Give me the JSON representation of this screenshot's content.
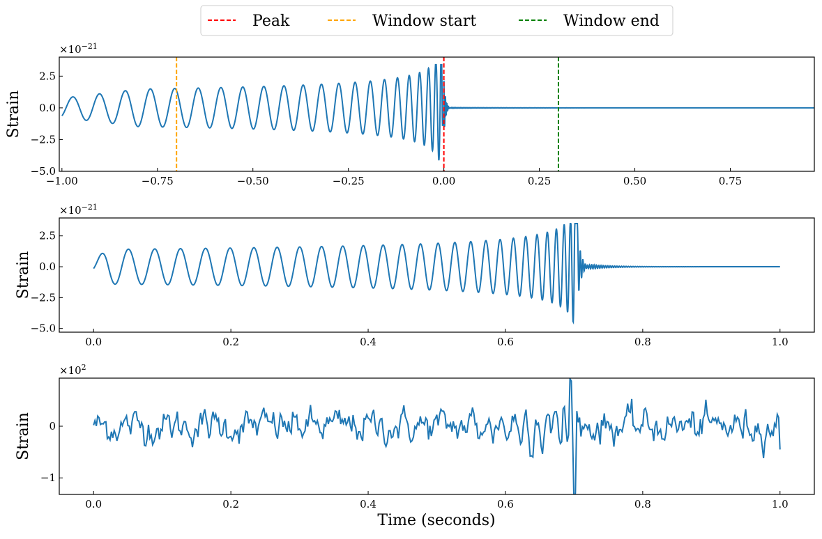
{
  "legend": {
    "placement": "top-center",
    "items": [
      {
        "label": "Peak",
        "color": "#ff0000",
        "style": "dashed"
      },
      {
        "label": "Window start",
        "color": "#ffa500",
        "style": "dashed"
      },
      {
        "label": "Window end",
        "color": "#008000",
        "style": "dashed"
      }
    ]
  },
  "xlabel": "Time (seconds)",
  "chart_data": [
    {
      "type": "line",
      "ylabel": "Strain",
      "offset_text": "×10",
      "offset_exp": "−21",
      "xlim": [
        -1.007,
        0.97
      ],
      "ylim": [
        -5.0,
        4.0
      ],
      "xticks": [
        -1.0,
        -0.75,
        -0.5,
        -0.25,
        0.0,
        0.25,
        0.5,
        0.75
      ],
      "xtick_labels": [
        "−1.00",
        "−0.75",
        "−0.50",
        "−0.25",
        "0.00",
        "0.25",
        "0.50",
        "0.75"
      ],
      "yticks": [
        2.5,
        0.0,
        -2.5,
        -5.0
      ],
      "ytick_labels": [
        "2.5",
        "0.0",
        "−2.5",
        "−5.0"
      ],
      "series_color": "#1f77b4",
      "description_values": {
        "peak_time": 0.0,
        "window_start": -0.7,
        "window_end": 0.3
      },
      "vlines": [
        {
          "x": 0.0,
          "legend": "Peak",
          "color": "#ff0000"
        },
        {
          "x": -0.7,
          "legend": "Window start",
          "color": "#ffa500"
        },
        {
          "x": 0.3,
          "legend": "Window end",
          "color": "#008000"
        }
      ],
      "grid": false
    },
    {
      "type": "line",
      "ylabel": "Strain",
      "offset_text": "×10",
      "offset_exp": "−21",
      "xlim": [
        -0.05,
        1.05
      ],
      "ylim": [
        -5.3,
        3.95
      ],
      "xticks": [
        0.0,
        0.2,
        0.4,
        0.6,
        0.8,
        1.0
      ],
      "xtick_labels": [
        "0.0",
        "0.2",
        "0.4",
        "0.6",
        "0.8",
        "1.0"
      ],
      "yticks": [
        2.5,
        0.0,
        -2.5,
        -5.0
      ],
      "ytick_labels": [
        "2.5",
        "0.0",
        "−2.5",
        "−5.0"
      ],
      "series_color": "#1f77b4",
      "description_values": {
        "merger_time": 0.7,
        "max": 3.5,
        "min": -4.8
      },
      "grid": false
    },
    {
      "type": "line",
      "ylabel": "Strain",
      "offset_text": "×10",
      "offset_exp": "2",
      "xlim": [
        -0.05,
        1.05
      ],
      "ylim": [
        -1.32,
        0.93
      ],
      "xticks": [
        0.0,
        0.2,
        0.4,
        0.6,
        0.8,
        1.0
      ],
      "xtick_labels": [
        "0.0",
        "0.2",
        "0.4",
        "0.6",
        "0.8",
        "1.0"
      ],
      "yticks": [
        0,
        -1
      ],
      "ytick_labels": [
        "0",
        "−1"
      ],
      "series_color": "#1f77b4",
      "description_values": {
        "max": 0.8,
        "min": -1.2,
        "extreme_time": 0.7
      },
      "grid": false
    }
  ]
}
